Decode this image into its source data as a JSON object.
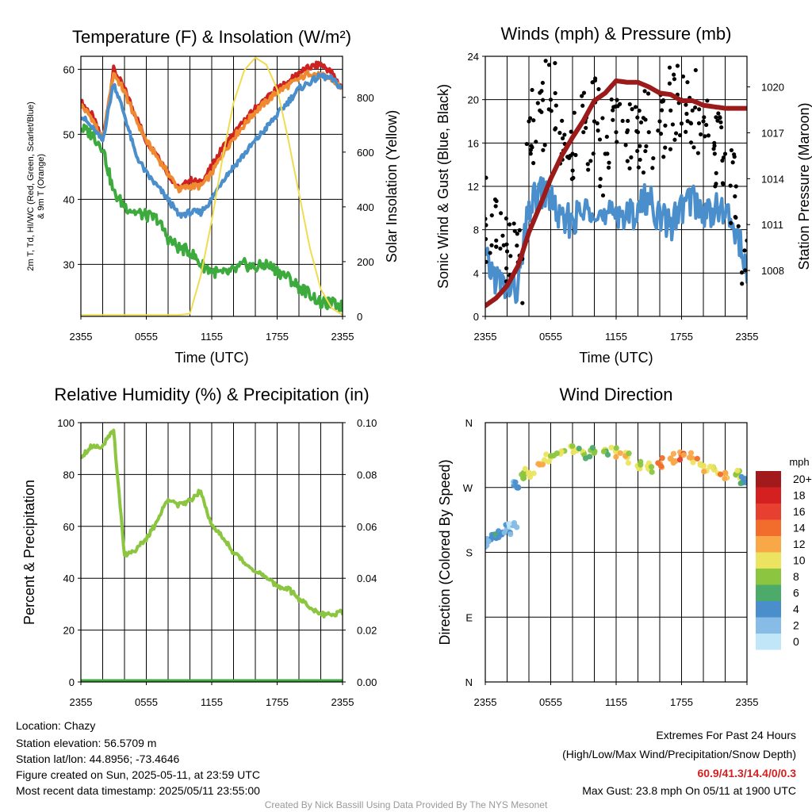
{
  "footer": {
    "left": [
      "Location: Chazy",
      "Station elevation: 56.5709 m",
      "Station lat/lon: 44.8956; -73.4646",
      "Figure created on Sun, 2025-05-11, at 23:59 UTC",
      "Most recent data timestamp: 2025/05/11 23:55:00"
    ],
    "extremes_title": "Extremes For Past 24 Hours",
    "extremes_legend": "(High/Low/Max Wind/Precipitation/Snow Depth)",
    "extremes_values": "60.9/41.3/14.4/0/0.3",
    "max_gust": "Max Gust: 23.8 mph On 05/11 at 1900 UTC",
    "credit": "Created By Nick Bassill Using Data Provided By The NYS Mesonet",
    "extremes_color": "#d42020"
  },
  "chart_data": [
    {
      "type": "line",
      "title": "Temperature (F) & Insolation (W/m²)",
      "xlabel": "Time (UTC)",
      "ylabel": "2m T, Td, HI/WC (Red, Green, Scarlet/Blue) & 9m T (Orange)",
      "y2label": "Solar Insolation (Yellow)",
      "xticks": [
        "2355",
        "0555",
        "1155",
        "1755",
        "2355"
      ],
      "ylim": [
        22,
        62
      ],
      "yticks": [
        30,
        40,
        50,
        60
      ],
      "y2lim": [
        0,
        950
      ],
      "y2ticks": [
        0,
        200,
        400,
        600,
        800
      ],
      "x": [
        0,
        1,
        2,
        3,
        4,
        5,
        6,
        7,
        8,
        9,
        10,
        11,
        12,
        13,
        14,
        15,
        16,
        17,
        18,
        19,
        20,
        21,
        22,
        23,
        24
      ],
      "series": [
        {
          "name": "2m T",
          "color": "#cc2222",
          "axis": "left",
          "values": [
            55,
            53,
            49,
            60,
            57,
            53,
            49,
            47,
            44,
            41.5,
            43,
            42.5,
            45,
            48,
            50,
            52,
            54,
            55.5,
            57,
            58,
            59.5,
            60.3,
            60.8,
            59.5,
            57
          ]
        },
        {
          "name": "9m T",
          "color": "#f08a30",
          "axis": "left",
          "values": [
            54.5,
            52.5,
            49,
            59.5,
            56.5,
            52.5,
            49,
            46.5,
            44,
            41.5,
            42,
            42,
            44,
            47,
            49.5,
            51.5,
            53.5,
            55,
            56.5,
            57.5,
            58.5,
            59.5,
            59,
            58.5,
            57
          ]
        },
        {
          "name": "HI/WC",
          "color": "#4a8fcc",
          "axis": "left",
          "values": [
            53,
            51,
            49,
            58,
            53,
            47,
            44,
            42,
            40,
            37.5,
            38,
            38,
            40,
            43,
            45,
            47,
            49,
            51,
            53,
            55,
            57,
            58,
            59,
            58.5,
            57
          ]
        },
        {
          "name": "Td",
          "color": "#3daa3d",
          "axis": "left",
          "values": [
            51,
            50,
            48,
            41,
            39,
            38,
            37.5,
            37,
            34,
            32.5,
            32,
            30,
            29,
            28.5,
            29,
            30,
            29.5,
            30,
            29,
            28,
            26.5,
            25.5,
            24,
            24,
            23.5
          ]
        },
        {
          "name": "Solar Insolation",
          "color": "#f0dc50",
          "axis": "right",
          "values": [
            5,
            5,
            5,
            5,
            5,
            5,
            5,
            5,
            5,
            5,
            10,
            150,
            350,
            580,
            780,
            900,
            945,
            920,
            830,
            650,
            450,
            250,
            100,
            30,
            5
          ]
        }
      ]
    },
    {
      "type": "line",
      "title": "Winds (mph) & Pressure (mb)",
      "xlabel": "Time (UTC)",
      "ylabel": "Sonic Wind & Gust (Blue, Black)",
      "y2label": "Station Pressure (Maroon)",
      "xticks": [
        "2355",
        "0555",
        "1155",
        "1755",
        "2355"
      ],
      "ylim": [
        0,
        24
      ],
      "yticks": [
        0,
        4,
        8,
        12,
        16,
        20,
        24
      ],
      "y2lim": [
        1005,
        1022
      ],
      "y2ticks": [
        1008,
        1011,
        1014,
        1017,
        1020
      ],
      "x": [
        0,
        1,
        2,
        3,
        4,
        5,
        6,
        7,
        8,
        9,
        10,
        11,
        12,
        13,
        14,
        15,
        16,
        17,
        18,
        19,
        20,
        21,
        22,
        23,
        24
      ],
      "series": [
        {
          "name": "Sonic Wind",
          "color": "#4a8fcc",
          "axis": "left",
          "values": [
            5,
            3.5,
            2.5,
            2.5,
            10,
            11.5,
            11,
            8.5,
            9,
            9.5,
            10.5,
            8.5,
            10,
            9,
            10,
            11,
            9,
            8.5,
            10,
            11,
            9.5,
            10,
            9.5,
            8,
            4
          ]
        },
        {
          "name": "Gust",
          "color": "#000000",
          "axis": "left",
          "style": "points",
          "values": [
            9,
            7,
            6,
            5,
            18,
            19,
            20,
            15,
            15,
            17,
            18,
            15,
            17,
            17,
            17,
            17,
            18,
            19,
            20,
            19,
            18,
            16,
            15,
            12,
            7
          ]
        },
        {
          "name": "Station Pressure",
          "color": "#9b1a1a",
          "axis": "right",
          "values": [
            1005.7,
            1006.2,
            1007,
            1008.3,
            1010.5,
            1012.2,
            1014,
            1015.5,
            1016.7,
            1017.8,
            1019.1,
            1019.6,
            1020.4,
            1020.3,
            1020.3,
            1020,
            1019.6,
            1019.5,
            1019.1,
            1019.1,
            1018.8,
            1018.7,
            1018.6,
            1018.6,
            1018.6
          ]
        }
      ]
    },
    {
      "type": "line",
      "title": "Relative Humidity (%) & Precipitation (in)",
      "ylabel": "Percent & Precipitation",
      "xticks": [
        "2355",
        "0555",
        "1155",
        "1755",
        "2355"
      ],
      "ylim": [
        0,
        100
      ],
      "yticks": [
        0,
        20,
        40,
        60,
        80,
        100
      ],
      "y2lim": [
        0,
        0.1
      ],
      "y2ticks": [
        "0.00",
        "0.02",
        "0.04",
        "0.06",
        "0.08",
        "0.10"
      ],
      "x": [
        0,
        1,
        2,
        3,
        4,
        5,
        6,
        7,
        8,
        9,
        10,
        11,
        12,
        13,
        14,
        15,
        16,
        17,
        18,
        19,
        20,
        21,
        22,
        23,
        24
      ],
      "series": [
        {
          "name": "Relative Humidity",
          "color": "#8cc640",
          "axis": "left",
          "values": [
            87,
            91,
            91,
            97,
            49,
            51,
            55,
            62,
            71,
            68,
            70,
            74,
            60,
            56,
            50,
            46,
            43,
            40,
            37,
            36,
            32,
            29,
            26,
            26,
            27
          ]
        },
        {
          "name": "Precipitation",
          "color": "#3daa3d",
          "axis": "right",
          "values": [
            0,
            0,
            0,
            0,
            0,
            0,
            0,
            0,
            0,
            0,
            0,
            0,
            0,
            0,
            0,
            0,
            0,
            0,
            0,
            0,
            0,
            0,
            0,
            0,
            0
          ]
        }
      ]
    },
    {
      "type": "scatter",
      "title": "Wind Direction",
      "ylabel": "Direction (Colored By Speed)",
      "xticks": [
        "2355",
        "0555",
        "1155",
        "1755",
        "2355"
      ],
      "ylim": [
        0,
        360
      ],
      "yticks": [
        "N",
        "E",
        "S",
        "W",
        "N"
      ],
      "x": [
        0.2,
        0.5,
        1,
        1.5,
        2,
        2.5,
        3,
        3.5,
        4,
        5,
        6,
        7,
        8,
        9,
        10,
        11,
        12,
        13,
        14,
        15,
        16,
        17,
        18,
        19,
        20,
        21,
        22,
        23,
        23.6
      ],
      "values": [
        195,
        198,
        200,
        205,
        212,
        218,
        270,
        283,
        290,
        302,
        312,
        320,
        326,
        318,
        320,
        322,
        320,
        312,
        300,
        296,
        303,
        310,
        315,
        310,
        300,
        295,
        290,
        288,
        277
      ],
      "speed": [
        3,
        3,
        4,
        3,
        2,
        1,
        4,
        8,
        9,
        12,
        10,
        9,
        9,
        8,
        7,
        8,
        10,
        10,
        9,
        9,
        12,
        12,
        14,
        12,
        10,
        10,
        12,
        8,
        4
      ],
      "legend": {
        "title": "mph",
        "labels": [
          "20+",
          "18",
          "16",
          "14",
          "12",
          "10",
          "8",
          "6",
          "4",
          "2",
          "0"
        ],
        "colors": [
          "#a31a1c",
          "#d42020",
          "#e84030",
          "#f26c2c",
          "#f9a848",
          "#ece460",
          "#8cc640",
          "#4caa6a",
          "#4a8fcc",
          "#86bce6",
          "#c0e6f8"
        ]
      }
    }
  ]
}
